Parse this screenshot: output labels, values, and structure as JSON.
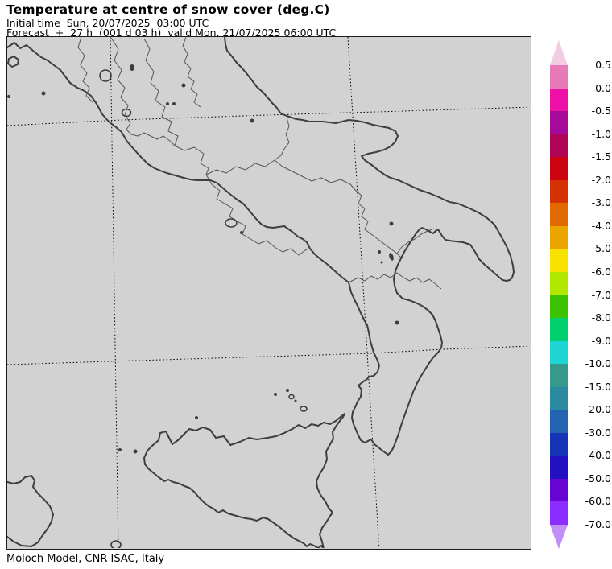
{
  "header": {
    "title": "Temperature at centre of snow cover (deg.C)",
    "initial_time": "Initial time  Sun, 20/07/2025  03:00 UTC",
    "forecast": "Forecast  +  27 h  (001 d 03 h)  valid Mon, 21/07/2025 06:00 UTC"
  },
  "footer": {
    "credit": "Moloch Model, CNR-ISAC, Italy"
  },
  "colorbar": {
    "labels": [
      "0.5",
      "0.0",
      "-0.5",
      "-1.0",
      "-1.5",
      "-2.0",
      "-3.0",
      "-4.0",
      "-5.0",
      "-6.0",
      "-7.0",
      "-8.0",
      "-9.0",
      "-10.0",
      "-15.0",
      "-20.0",
      "-30.0",
      "-40.0",
      "-50.0",
      "-60.0",
      "-70.0"
    ],
    "segment_colors": [
      "#e87ab8",
      "#ee11a8",
      "#a50a9b",
      "#b00456",
      "#cc0410",
      "#d43200",
      "#e06a00",
      "#eca400",
      "#f8e200",
      "#b2e800",
      "#3cc200",
      "#02d06e",
      "#1ed4d4",
      "#359a8c",
      "#2a8aa0",
      "#2462b2",
      "#1634b6",
      "#2212c2",
      "#6a04d2",
      "#8c2cfe"
    ],
    "above_range_color": "#f2cce2",
    "below_range_color": "#c28ef8"
  },
  "map": {
    "background_color": "#d2d2d2",
    "coastline_color": "#3e3e3e",
    "border_color": "#555555",
    "gridline_color": "#000000"
  }
}
